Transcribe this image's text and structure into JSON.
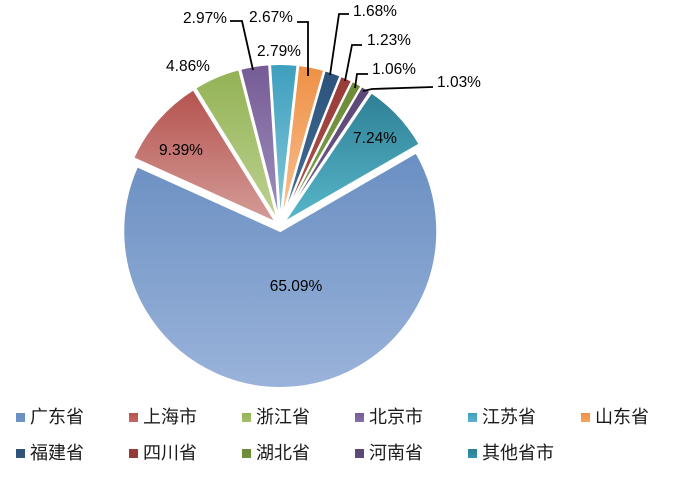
{
  "chart": {
    "background_color": "#ffffff",
    "data_label_color": "#000000",
    "leader_line_color": "#000000",
    "legend_text_color": "#1a1a1a"
  },
  "chart_data": {
    "type": "pie",
    "title": "",
    "unit": "percent",
    "start_angle_deg": 60,
    "direction": "clockwise",
    "grid": false,
    "legend_position": "bottom",
    "legend_rows": 2,
    "slices": [
      {
        "name": "广东省",
        "value": 65.09,
        "label": "65.09%",
        "color_top": "#6A8FC2",
        "color_bottom": "#9AB3DA",
        "legend_color": "#6D92C6"
      },
      {
        "name": "上海市",
        "value": 9.39,
        "label": "9.39%",
        "color_top": "#B5524E",
        "color_bottom": "#D49D98",
        "legend_color": "#C66561"
      },
      {
        "name": "浙江省",
        "value": 4.86,
        "label": "4.86%",
        "color_top": "#93B254",
        "color_bottom": "#BDD292",
        "legend_color": "#A5BF6B"
      },
      {
        "name": "北京市",
        "value": 2.97,
        "label": "2.97%",
        "color_top": "#765B95",
        "color_bottom": "#9F91BE",
        "legend_color": "#8571A7"
      },
      {
        "name": "江苏省",
        "value": 2.79,
        "label": "2.79%",
        "color_top": "#3E9FBE",
        "color_bottom": "#85C9D9",
        "legend_color": "#5FB1CD"
      },
      {
        "name": "山东省",
        "value": 2.67,
        "label": "2.67%",
        "color_top": "#EE9044",
        "color_bottom": "#FAC295",
        "legend_color": "#F3A660"
      },
      {
        "name": "福建省",
        "value": 1.68,
        "label": "1.68%",
        "color_top": "#2C527A",
        "color_bottom": "#45709B",
        "legend_color": "#33567D"
      },
      {
        "name": "四川省",
        "value": 1.23,
        "label": "1.23%",
        "color_top": "#983B38",
        "color_bottom": "#AE5450",
        "legend_color": "#943A37"
      },
      {
        "name": "湖北省",
        "value": 1.06,
        "label": "1.06%",
        "color_top": "#6C8A38",
        "color_bottom": "#81A04B",
        "legend_color": "#70913C"
      },
      {
        "name": "河南省",
        "value": 1.03,
        "label": "1.03%",
        "color_top": "#5A4775",
        "color_bottom": "#6F5C8A",
        "legend_color": "#5E4B79"
      },
      {
        "name": "其他省市",
        "value": 7.24,
        "label": "7.24%",
        "color_top": "#2E7F94",
        "color_bottom": "#58B7C9",
        "legend_color": "#3295AA"
      }
    ]
  }
}
